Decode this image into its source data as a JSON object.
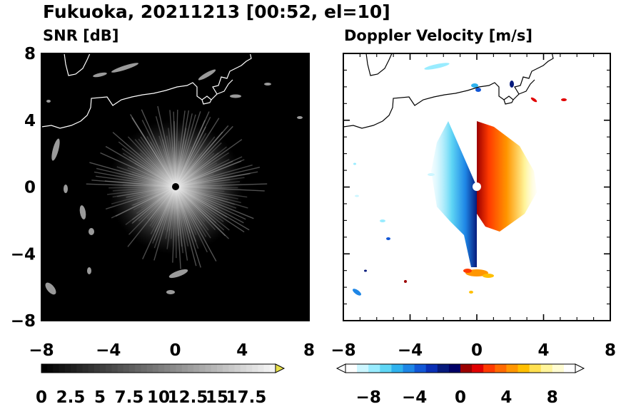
{
  "title": "Fukuoka, 20211213 [00:52, el=10]",
  "chart_data": [
    {
      "type": "heatmap",
      "title": "SNR [dB]",
      "xlim": [
        -8,
        8
      ],
      "ylim": [
        -8,
        8
      ],
      "x_ticks": [
        "−8",
        "−4",
        "0",
        "4",
        "8"
      ],
      "y_ticks": [
        "8",
        "4",
        "0",
        "−4",
        "−8"
      ],
      "colorbar": {
        "range": [
          0,
          20
        ],
        "extend": "max",
        "tick_labels": [
          "0",
          "2.5",
          "5",
          "7.5",
          "10",
          "12.5",
          "15",
          "17.5"
        ],
        "colormap": "grayscale"
      },
      "background_color": "#000000",
      "coastline_color": "#ffffff"
    },
    {
      "type": "heatmap",
      "title": "Doppler Velocity [m/s]",
      "xlim": [
        -8,
        8
      ],
      "ylim": [
        -8,
        8
      ],
      "x_ticks": [
        "−8",
        "−4",
        "0",
        "4",
        "8"
      ],
      "y_ticks": [
        "8",
        "4",
        "0",
        "−4",
        "−8"
      ],
      "colorbar": {
        "range": [
          -10,
          10
        ],
        "extend": "both",
        "tick_labels": [
          "−8",
          "−4",
          "0",
          "4",
          "8"
        ],
        "colormap": "blue-white-red diverging",
        "colors": [
          "#ffffff",
          "#ccf6ff",
          "#99ecff",
          "#5fd6f5",
          "#2fb2ee",
          "#1e86e6",
          "#1257d6",
          "#0a2fb5",
          "#061a7c",
          "#000066",
          "#9b0000",
          "#e10000",
          "#ff3a00",
          "#ff6a00",
          "#ff9600",
          "#ffbf00",
          "#ffe050",
          "#fff49a",
          "#fffcd2",
          "#ffffff"
        ]
      },
      "background_color": "#ffffff",
      "coastline_color": "#000000"
    }
  ]
}
